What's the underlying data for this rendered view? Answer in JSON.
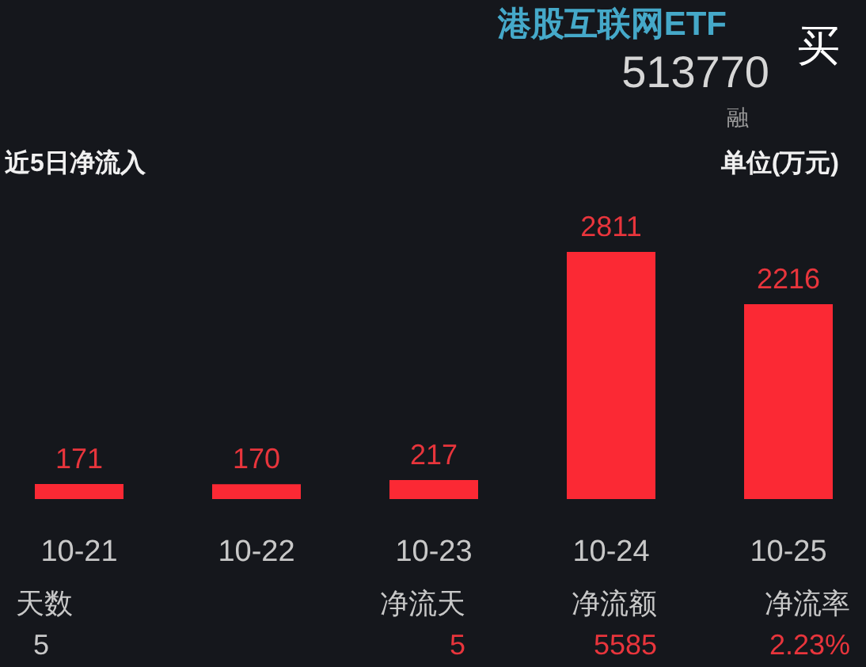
{
  "chart_data": {
    "type": "bar",
    "title": "近5日净流入",
    "categories": [
      "10-21",
      "10-22",
      "10-23",
      "10-24",
      "10-25"
    ],
    "values": [
      171,
      170,
      217,
      2811,
      2216
    ],
    "color": "#fb2934",
    "data_labels": true,
    "annotations": [
      "港股互联网ETF",
      "513770",
      "买",
      "融",
      "单位(万元)",
      "天数",
      "5",
      "净流天",
      "5",
      "净流额",
      "5585",
      "净流率",
      "2.23%"
    ]
  }
}
